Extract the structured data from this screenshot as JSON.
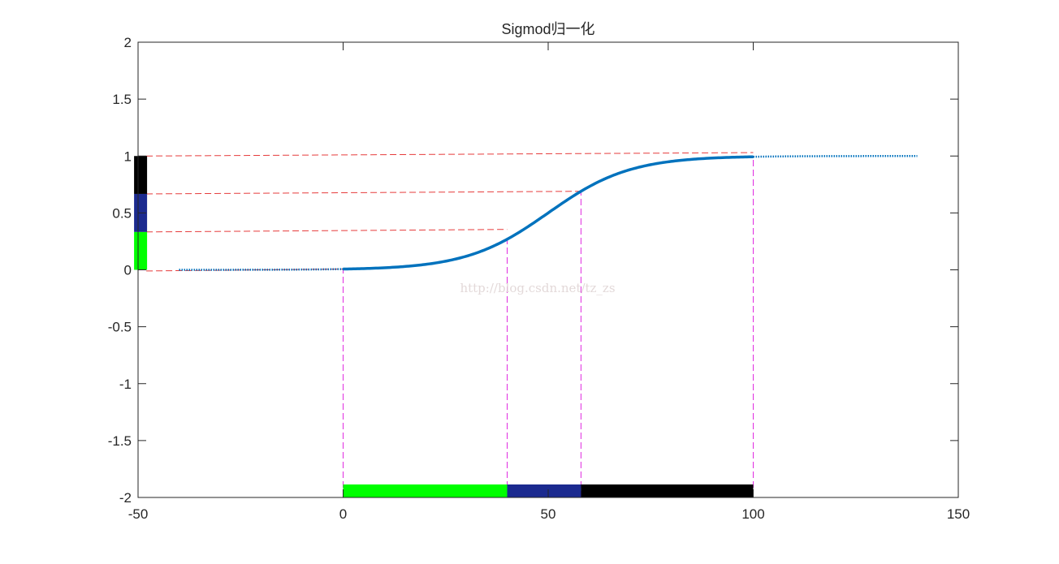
{
  "chart_data": {
    "type": "line",
    "title": "Sigmod归一化",
    "xlabel": "",
    "ylabel": "",
    "xlim": [
      -50,
      150
    ],
    "ylim": [
      -2,
      2
    ],
    "xticks": [
      -50,
      0,
      50,
      100,
      150
    ],
    "yticks": [
      -2,
      -1.5,
      -1,
      -0.5,
      0,
      0.5,
      1,
      1.5,
      2
    ],
    "xtick_labels": [
      "-50",
      "0",
      "50",
      "100",
      "150"
    ],
    "ytick_labels": [
      "-2",
      "-1.5",
      "-1",
      "-0.5",
      "0",
      "0.5",
      "1",
      "1.5",
      "2"
    ],
    "grid": false,
    "box": true,
    "series": [
      {
        "style": "solid",
        "color": "#0072bd",
        "function": "sigmoid",
        "center": 50,
        "scale": 0.1,
        "x_range": [
          0,
          100
        ]
      },
      {
        "style": "dotted",
        "color": "#0072bd",
        "function": "sigmoid",
        "center": 50,
        "scale": 0.1,
        "x_range": [
          -40,
          0
        ]
      },
      {
        "style": "dotted",
        "color": "#0072bd",
        "function": "sigmoid",
        "center": 50,
        "scale": 0.1,
        "x_range": [
          100,
          140
        ]
      }
    ],
    "vertical_guides": {
      "color": "#e02be0",
      "style": "dashed",
      "lines": [
        {
          "x": 0,
          "y_top": 0.0067
        },
        {
          "x": 40,
          "y_top": 0.269
        },
        {
          "x": 58,
          "y_top": 0.69
        },
        {
          "x": 100,
          "y_top": 0.993
        }
      ]
    },
    "horizontal_guides": {
      "color": "#e63b3b",
      "style": "dashed",
      "lines": [
        {
          "x_from": -48,
          "y_from": -0.01,
          "x_to": 0,
          "y_to": 0.0067
        },
        {
          "x_from": -48,
          "y_from": 0.333,
          "x_to": 40,
          "y_to": 0.355
        },
        {
          "x_from": -48,
          "y_from": 0.667,
          "x_to": 58,
          "y_to": 0.69
        },
        {
          "x_from": -48,
          "y_from": 1.0,
          "x_to": 100,
          "y_to": 1.03
        }
      ]
    },
    "x_segments": [
      {
        "x_from": 0,
        "x_to": 40,
        "color": "#00ff00"
      },
      {
        "x_from": 40,
        "x_to": 58,
        "color": "#1b2a8f"
      },
      {
        "x_from": 58,
        "x_to": 100,
        "color": "#000000"
      }
    ],
    "y_segments": [
      {
        "y_from": 0,
        "y_to": 0.333,
        "color": "#00ff00"
      },
      {
        "y_from": 0.333,
        "y_to": 0.667,
        "color": "#1b2a8f"
      },
      {
        "y_from": 0.667,
        "y_to": 1.0,
        "color": "#000000"
      }
    ]
  },
  "watermark": "http://blog.csdn.net/tz_zs",
  "colors": {
    "background": "#ffffff",
    "axis": "#262626"
  }
}
